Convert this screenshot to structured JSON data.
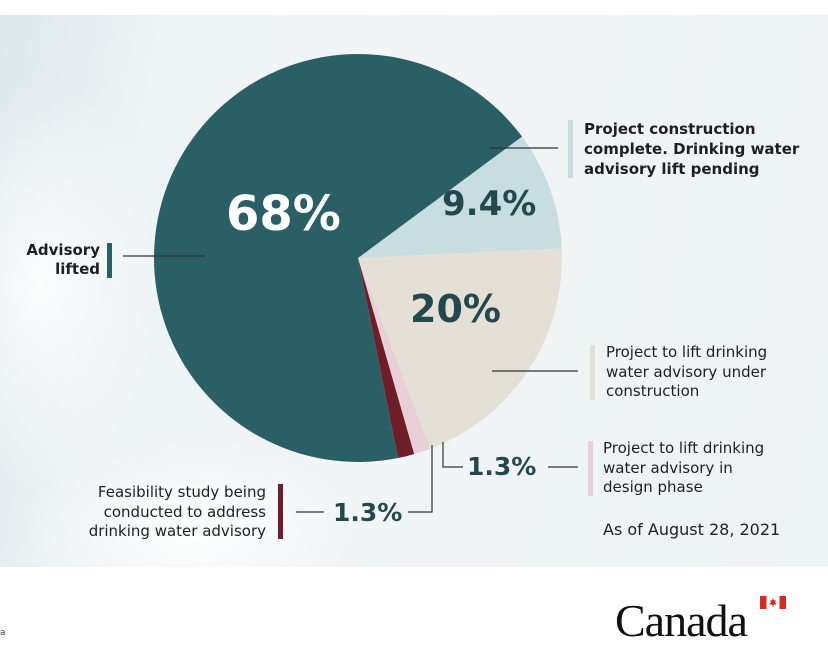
{
  "chart_data": {
    "type": "pie",
    "slices": [
      {
        "label": "Advisory lifted",
        "value": 68,
        "display": "68%",
        "color": "#2a5f66"
      },
      {
        "label": "Project construction complete. Drinking water advisory lift pending",
        "value": 9.4,
        "display": "9.4%",
        "color": "#c7dde0"
      },
      {
        "label": "Project to lift drinking water advisory under construction",
        "value": 20,
        "display": "20%",
        "color": "#e4e0d6"
      },
      {
        "label": "Project to lift drinking water advisory in design phase",
        "value": 1.3,
        "display": "1.3%",
        "color": "#e8cfd8"
      },
      {
        "label": "Feasibility study being conducted to address drinking water advisory",
        "value": 1.3,
        "display": "1.3%",
        "color": "#6f1d28"
      }
    ]
  },
  "labels": {
    "advisory_lifted": [
      "Advisory",
      "lifted"
    ],
    "construction_complete": [
      "Project construction",
      "complete. Drinking water",
      "advisory lift pending"
    ],
    "under_construction": [
      "Project to lift drinking",
      "water advisory under",
      "construction"
    ],
    "design_phase": [
      "Project to lift drinking",
      "water advisory in",
      "design phase"
    ],
    "feasibility": [
      "Feasibility study being",
      "conducted to address",
      "drinking water advisory"
    ]
  },
  "date_note": "As of August 28, 2021",
  "brand": "Canada",
  "footer_mark": "a",
  "colors": {
    "teal": "#2a5f66",
    "light_teal": "#c7dde0",
    "beige": "#e4e0d6",
    "pink": "#e8cfd8",
    "maroon": "#6f1d28",
    "flag_red": "#d52b1e"
  }
}
